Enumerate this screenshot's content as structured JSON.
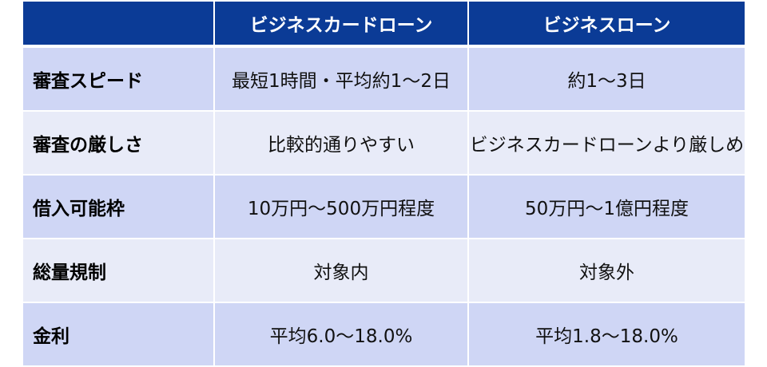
{
  "header": {
    "col0": "",
    "col1": "ビジネスカードローン",
    "col2": "ビジネスローン"
  },
  "rows": [
    {
      "label": "審査スピード",
      "card_loan": "最短1時間・平均約1～2日",
      "business_loan": "約1～3日"
    },
    {
      "label": "審査の厳しさ",
      "card_loan": "比較的通りやすい",
      "business_loan": "ビジネスカードローンより厳しめ"
    },
    {
      "label": "借入可能枠",
      "card_loan": "10万円～500万円程度",
      "business_loan": "50万円～1億円程度"
    },
    {
      "label": "総量規制",
      "card_loan": "対象内",
      "business_loan": "対象外"
    },
    {
      "label": "金利",
      "card_loan": "平均6.0～18.0%",
      "business_loan": "平均1.8～18.0%"
    }
  ],
  "colors": {
    "header_bg": "#0b3b96",
    "row_odd_bg": "#cfd6f5",
    "row_even_bg": "#e8ebf8"
  }
}
